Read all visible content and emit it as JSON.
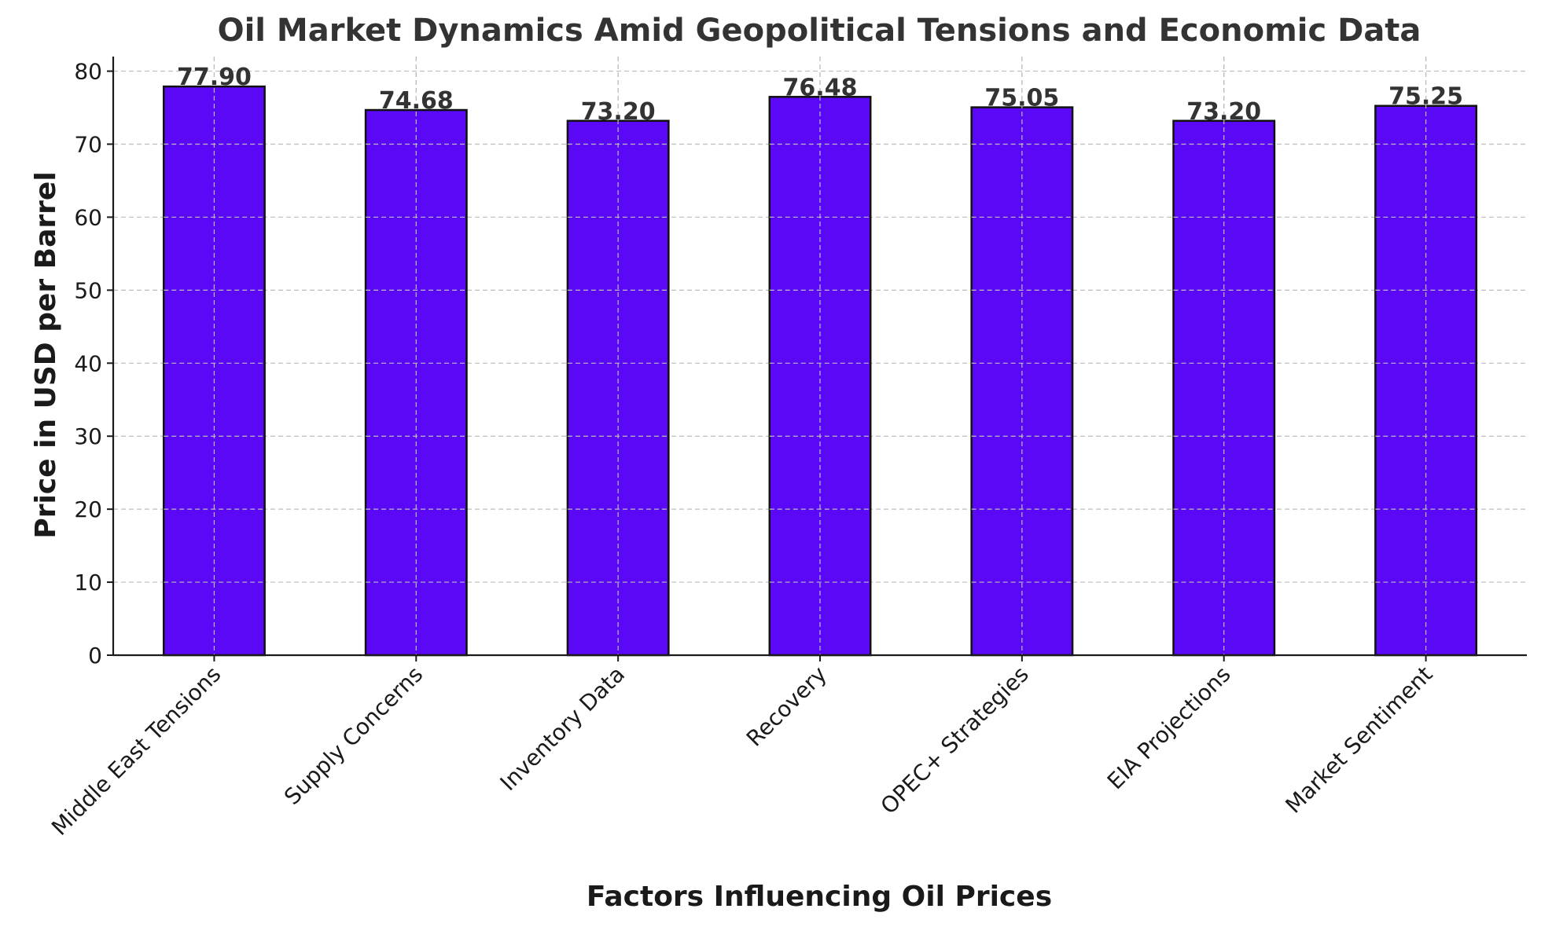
{
  "chart_data": {
    "type": "bar",
    "title": "Oil Market Dynamics Amid Geopolitical Tensions and Economic Data",
    "xlabel": "Factors Influencing Oil Prices",
    "ylabel": "Price in USD per Barrel",
    "categories": [
      "Middle East Tensions",
      "Supply Concerns",
      "Inventory Data",
      "Recovery",
      "OPEC+ Strategies",
      "EIA Projections",
      "Market Sentiment"
    ],
    "values": [
      77.9,
      74.68,
      73.2,
      76.48,
      75.05,
      73.2,
      75.25
    ],
    "data_labels": [
      "77.90",
      "74.68",
      "73.20",
      "76.48",
      "75.05",
      "73.20",
      "75.25"
    ],
    "ylim": [
      0,
      82
    ],
    "yticks": [
      0,
      10,
      20,
      30,
      40,
      50,
      60,
      70,
      80
    ],
    "ytick_labels": [
      "0",
      "10",
      "20",
      "30",
      "40",
      "50",
      "60",
      "70",
      "80"
    ],
    "grid": true,
    "legend": false,
    "bar_color": "#5a08f5",
    "bar_edge_color": "#111111"
  }
}
